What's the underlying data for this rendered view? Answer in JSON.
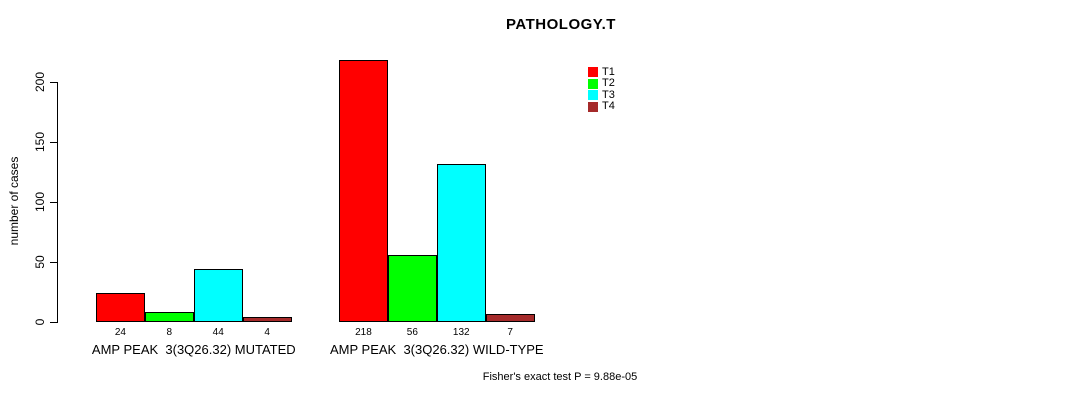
{
  "title": "PATHOLOGY.T",
  "ylabel": "number of cases",
  "footer": "Fisher's exact test P = 9.88e-05",
  "legend": {
    "items": [
      {
        "label": "T1",
        "color": "#FF0000"
      },
      {
        "label": "T2",
        "color": "#00FF00"
      },
      {
        "label": "T3",
        "color": "#00FFFF"
      },
      {
        "label": "T4",
        "color": "#A52A2A"
      }
    ]
  },
  "chart_data": {
    "type": "bar",
    "title": "PATHOLOGY.T",
    "ylabel": "number of cases",
    "xlabel": "",
    "yticks": [
      0,
      50,
      100,
      150,
      200
    ],
    "ylim": [
      0,
      220
    ],
    "grid": false,
    "legend_position": "top-right",
    "categories": [
      "AMP PEAK  3(3Q26.32) MUTATED",
      "AMP PEAK  3(3Q26.32) WILD-TYPE"
    ],
    "series": [
      {
        "name": "T1",
        "color": "#FF0000",
        "values": [
          24,
          218
        ]
      },
      {
        "name": "T2",
        "color": "#00FF00",
        "values": [
          8,
          56
        ]
      },
      {
        "name": "T3",
        "color": "#00FFFF",
        "values": [
          44,
          132
        ]
      },
      {
        "name": "T4",
        "color": "#A52A2A",
        "values": [
          4,
          7
        ]
      }
    ],
    "bar_value_labels": [
      [
        24,
        8,
        44,
        4
      ],
      [
        218,
        56,
        132,
        7
      ]
    ],
    "annotation": "Fisher's exact test P = 9.88e-05"
  }
}
